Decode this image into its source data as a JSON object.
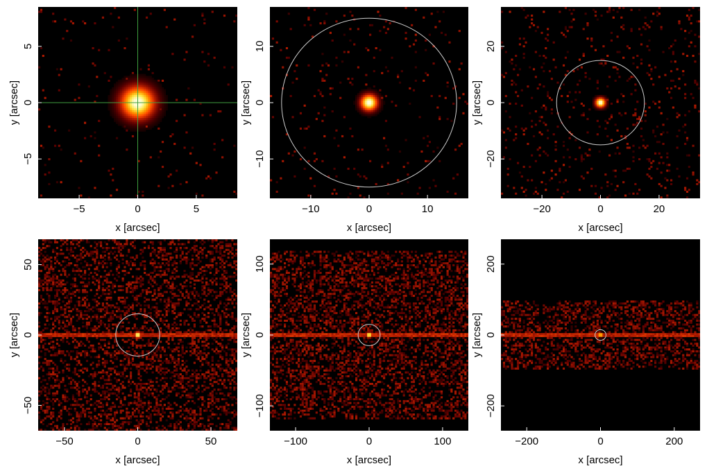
{
  "figure": {
    "background": "#ffffff"
  },
  "colors": {
    "image_background": "#000000",
    "crosshair": "#3f9f3f",
    "aperture": "#cfcfcf",
    "colormap": [
      "#000000",
      "#5a0000",
      "#b01a00",
      "#ff4a00",
      "#ff9a00",
      "#ffe640",
      "#ffffd8"
    ]
  },
  "chart_data": [
    {
      "type": "heatmap",
      "xlabel": "x [arcsec]",
      "ylabel": "y [arcsec]",
      "xlim": [
        -8.5,
        8.5
      ],
      "ylim": [
        -8.5,
        8.5
      ],
      "xticks": [
        -5,
        0,
        5
      ],
      "yticks": [
        -5,
        0,
        5
      ],
      "xtick_labels": [
        "−5",
        "0",
        "5"
      ],
      "ytick_labels": [
        "−5",
        "0",
        "5"
      ],
      "source_center": [
        0,
        0
      ],
      "source_radius": 1.0,
      "background_level": 0.02,
      "band_halfheight": null,
      "overlay": "crosshair",
      "aperture_radius": null
    },
    {
      "type": "heatmap",
      "xlabel": "x [arcsec]",
      "ylabel": "y [arcsec]",
      "xlim": [
        -17,
        17
      ],
      "ylim": [
        -17,
        17
      ],
      "xticks": [
        -10,
        0,
        10
      ],
      "yticks": [
        -10,
        0,
        10
      ],
      "xtick_labels": [
        "−10",
        "0",
        "10"
      ],
      "ytick_labels": [
        "−10",
        "0",
        "10"
      ],
      "source_center": [
        0,
        0
      ],
      "source_radius": 1.0,
      "background_level": 0.03,
      "band_halfheight": null,
      "overlay": "aperture",
      "aperture_radius": 15
    },
    {
      "type": "heatmap",
      "xlabel": "x [arcsec]",
      "ylabel": "y [arcsec]",
      "xlim": [
        -34,
        34
      ],
      "ylim": [
        -34,
        34
      ],
      "xticks": [
        -20,
        0,
        20
      ],
      "yticks": [
        -20,
        0,
        20
      ],
      "xtick_labels": [
        "−20",
        "0",
        "20"
      ],
      "ytick_labels": [
        "−20",
        "0",
        "20"
      ],
      "source_center": [
        0,
        0
      ],
      "source_radius": 1.2,
      "background_level": 0.06,
      "band_halfheight": null,
      "overlay": "aperture",
      "aperture_radius": 15
    },
    {
      "type": "heatmap",
      "xlabel": "x [arcsec]",
      "ylabel": "y [arcsec]",
      "xlim": [
        -68,
        68
      ],
      "ylim": [
        -68,
        68
      ],
      "xticks": [
        -50,
        0,
        50
      ],
      "yticks": [
        -50,
        0,
        50
      ],
      "xtick_labels": [
        "−50",
        "0",
        "50"
      ],
      "ytick_labels": [
        "−50",
        "0",
        "50"
      ],
      "source_center": [
        0,
        0
      ],
      "source_radius": 1.5,
      "background_level": 0.35,
      "band_halfheight": null,
      "overlay": "aperture",
      "aperture_radius": 15
    },
    {
      "type": "heatmap",
      "xlabel": "x [arcsec]",
      "ylabel": "y [arcsec]",
      "xlim": [
        -135,
        135
      ],
      "ylim": [
        -135,
        135
      ],
      "xticks": [
        -100,
        0,
        100
      ],
      "yticks": [
        -100,
        0,
        100
      ],
      "xtick_labels": [
        "−100",
        "0",
        "100"
      ],
      "ytick_labels": [
        "−100",
        "0",
        "100"
      ],
      "source_center": [
        0,
        0
      ],
      "source_radius": 2.5,
      "background_level": 0.4,
      "band_halfheight": 120,
      "overlay": "aperture",
      "aperture_radius": 15
    },
    {
      "type": "heatmap",
      "xlabel": "x [arcsec]",
      "ylabel": "y [arcsec]",
      "xlim": [
        -270,
        270
      ],
      "ylim": [
        -270,
        270
      ],
      "xticks": [
        -200,
        0,
        200
      ],
      "yticks": [
        -200,
        0,
        200
      ],
      "xtick_labels": [
        "−200",
        "0",
        "200"
      ],
      "ytick_labels": [
        "−200",
        "0",
        "200"
      ],
      "source_center": [
        0,
        0
      ],
      "source_radius": 4,
      "background_level": 0.4,
      "band_halfheight": 95,
      "overlay": "aperture",
      "aperture_radius": 15
    }
  ]
}
